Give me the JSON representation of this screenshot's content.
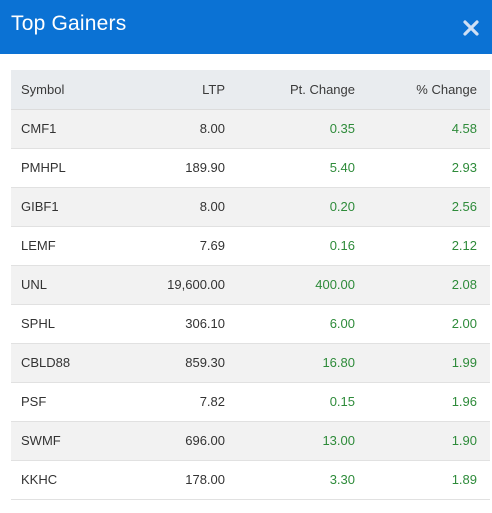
{
  "header": {
    "title": "Top Gainers"
  },
  "colors": {
    "header_bg": "#0b72d4",
    "gain": "#2e8b3a"
  },
  "table": {
    "columns": [
      "Symbol",
      "LTP",
      "Pt. Change",
      "% Change"
    ],
    "rows": [
      {
        "symbol": "CMF1",
        "ltp": "8.00",
        "pt_change": "0.35",
        "pct_change": "4.58"
      },
      {
        "symbol": "PMHPL",
        "ltp": "189.90",
        "pt_change": "5.40",
        "pct_change": "2.93"
      },
      {
        "symbol": "GIBF1",
        "ltp": "8.00",
        "pt_change": "0.20",
        "pct_change": "2.56"
      },
      {
        "symbol": "LEMF",
        "ltp": "7.69",
        "pt_change": "0.16",
        "pct_change": "2.12"
      },
      {
        "symbol": "UNL",
        "ltp": "19,600.00",
        "pt_change": "400.00",
        "pct_change": "2.08"
      },
      {
        "symbol": "SPHL",
        "ltp": "306.10",
        "pt_change": "6.00",
        "pct_change": "2.00"
      },
      {
        "symbol": "CBLD88",
        "ltp": "859.30",
        "pt_change": "16.80",
        "pct_change": "1.99"
      },
      {
        "symbol": "PSF",
        "ltp": "7.82",
        "pt_change": "0.15",
        "pct_change": "1.96"
      },
      {
        "symbol": "SWMF",
        "ltp": "696.00",
        "pt_change": "13.00",
        "pct_change": "1.90"
      },
      {
        "symbol": "KKHC",
        "ltp": "178.00",
        "pt_change": "3.30",
        "pct_change": "1.89"
      }
    ]
  }
}
